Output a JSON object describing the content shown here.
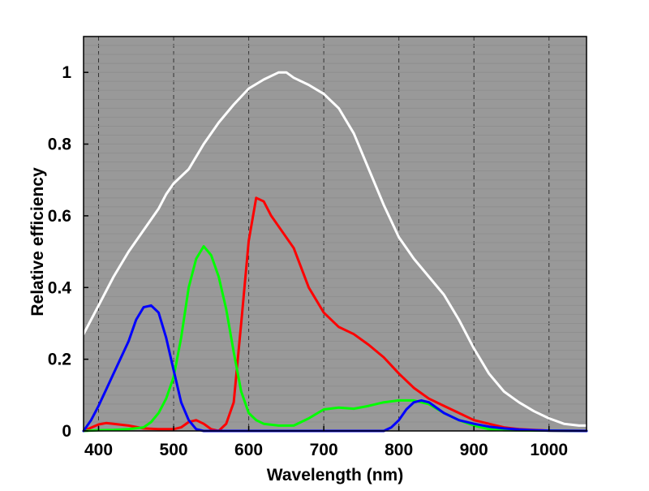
{
  "chart_data": {
    "type": "line",
    "title": "",
    "xlabel": "Wavelength (nm)",
    "ylabel": "Relative efficiency",
    "xlim": [
      380,
      1050
    ],
    "ylim": [
      0,
      1.1
    ],
    "xticks": [
      400,
      500,
      600,
      700,
      800,
      900,
      1000
    ],
    "xtick_labels": [
      "400",
      "500",
      "600",
      "700",
      "800",
      "900",
      "1000"
    ],
    "yticks": [
      0,
      0.2,
      0.4,
      0.6,
      0.8,
      1.0
    ],
    "ytick_labels": [
      "0",
      "0.2",
      "0.4",
      "0.6",
      "0.8",
      "1"
    ],
    "grid": "vertical dashed at x ticks",
    "background_color": "#999999",
    "series": [
      {
        "color": "#ffffff",
        "points": [
          [
            380,
            0.27
          ],
          [
            400,
            0.35
          ],
          [
            420,
            0.43
          ],
          [
            440,
            0.5
          ],
          [
            460,
            0.56
          ],
          [
            480,
            0.62
          ],
          [
            490,
            0.66
          ],
          [
            500,
            0.69
          ],
          [
            520,
            0.73
          ],
          [
            540,
            0.8
          ],
          [
            560,
            0.86
          ],
          [
            580,
            0.91
          ],
          [
            600,
            0.955
          ],
          [
            620,
            0.98
          ],
          [
            640,
            1.0
          ],
          [
            650,
            1.0
          ],
          [
            660,
            0.985
          ],
          [
            680,
            0.965
          ],
          [
            700,
            0.94
          ],
          [
            720,
            0.9
          ],
          [
            740,
            0.83
          ],
          [
            760,
            0.73
          ],
          [
            780,
            0.63
          ],
          [
            800,
            0.54
          ],
          [
            820,
            0.48
          ],
          [
            840,
            0.43
          ],
          [
            860,
            0.38
          ],
          [
            880,
            0.31
          ],
          [
            900,
            0.23
          ],
          [
            920,
            0.16
          ],
          [
            940,
            0.11
          ],
          [
            960,
            0.08
          ],
          [
            980,
            0.055
          ],
          [
            1000,
            0.035
          ],
          [
            1020,
            0.02
          ],
          [
            1040,
            0.015
          ],
          [
            1050,
            0.015
          ]
        ]
      },
      {
        "color": "#ff0000",
        "points": [
          [
            380,
            0.0
          ],
          [
            400,
            0.018
          ],
          [
            410,
            0.022
          ],
          [
            420,
            0.02
          ],
          [
            440,
            0.015
          ],
          [
            460,
            0.007
          ],
          [
            480,
            0.005
          ],
          [
            500,
            0.005
          ],
          [
            510,
            0.01
          ],
          [
            520,
            0.025
          ],
          [
            530,
            0.03
          ],
          [
            540,
            0.02
          ],
          [
            550,
            0.005
          ],
          [
            560,
            0.0
          ],
          [
            570,
            0.02
          ],
          [
            580,
            0.08
          ],
          [
            590,
            0.3
          ],
          [
            600,
            0.53
          ],
          [
            610,
            0.65
          ],
          [
            620,
            0.64
          ],
          [
            630,
            0.6
          ],
          [
            640,
            0.57
          ],
          [
            660,
            0.51
          ],
          [
            680,
            0.4
          ],
          [
            700,
            0.33
          ],
          [
            720,
            0.29
          ],
          [
            740,
            0.27
          ],
          [
            760,
            0.24
          ],
          [
            780,
            0.205
          ],
          [
            800,
            0.16
          ],
          [
            820,
            0.12
          ],
          [
            840,
            0.09
          ],
          [
            860,
            0.07
          ],
          [
            880,
            0.05
          ],
          [
            900,
            0.03
          ],
          [
            920,
            0.02
          ],
          [
            940,
            0.01
          ],
          [
            960,
            0.005
          ],
          [
            980,
            0.003
          ],
          [
            1000,
            0.001
          ],
          [
            1050,
            0.0
          ]
        ]
      },
      {
        "color": "#00ff00",
        "points": [
          [
            380,
            0.0
          ],
          [
            400,
            0.002
          ],
          [
            420,
            0.003
          ],
          [
            440,
            0.005
          ],
          [
            460,
            0.01
          ],
          [
            470,
            0.025
          ],
          [
            480,
            0.05
          ],
          [
            490,
            0.09
          ],
          [
            500,
            0.15
          ],
          [
            510,
            0.26
          ],
          [
            520,
            0.4
          ],
          [
            530,
            0.48
          ],
          [
            540,
            0.515
          ],
          [
            550,
            0.49
          ],
          [
            560,
            0.43
          ],
          [
            570,
            0.34
          ],
          [
            580,
            0.22
          ],
          [
            590,
            0.11
          ],
          [
            600,
            0.05
          ],
          [
            610,
            0.03
          ],
          [
            620,
            0.02
          ],
          [
            640,
            0.015
          ],
          [
            660,
            0.015
          ],
          [
            680,
            0.035
          ],
          [
            700,
            0.06
          ],
          [
            720,
            0.065
          ],
          [
            740,
            0.062
          ],
          [
            760,
            0.07
          ],
          [
            780,
            0.08
          ],
          [
            800,
            0.085
          ],
          [
            820,
            0.085
          ],
          [
            840,
            0.075
          ],
          [
            860,
            0.05
          ],
          [
            880,
            0.03
          ],
          [
            900,
            0.015
          ],
          [
            920,
            0.005
          ],
          [
            940,
            0.002
          ],
          [
            1050,
            0.0
          ]
        ]
      },
      {
        "color": "#0000ff",
        "points": [
          [
            380,
            0.0
          ],
          [
            390,
            0.03
          ],
          [
            400,
            0.07
          ],
          [
            420,
            0.16
          ],
          [
            440,
            0.25
          ],
          [
            450,
            0.31
          ],
          [
            460,
            0.345
          ],
          [
            470,
            0.35
          ],
          [
            480,
            0.33
          ],
          [
            490,
            0.26
          ],
          [
            500,
            0.17
          ],
          [
            510,
            0.08
          ],
          [
            520,
            0.03
          ],
          [
            530,
            0.005
          ],
          [
            540,
            0.0
          ],
          [
            780,
            0.0
          ],
          [
            790,
            0.01
          ],
          [
            800,
            0.03
          ],
          [
            810,
            0.06
          ],
          [
            820,
            0.08
          ],
          [
            830,
            0.085
          ],
          [
            840,
            0.08
          ],
          [
            860,
            0.05
          ],
          [
            880,
            0.03
          ],
          [
            900,
            0.02
          ],
          [
            920,
            0.012
          ],
          [
            940,
            0.007
          ],
          [
            960,
            0.004
          ],
          [
            980,
            0.002
          ],
          [
            1000,
            0.001
          ],
          [
            1050,
            0.0
          ]
        ]
      }
    ]
  }
}
